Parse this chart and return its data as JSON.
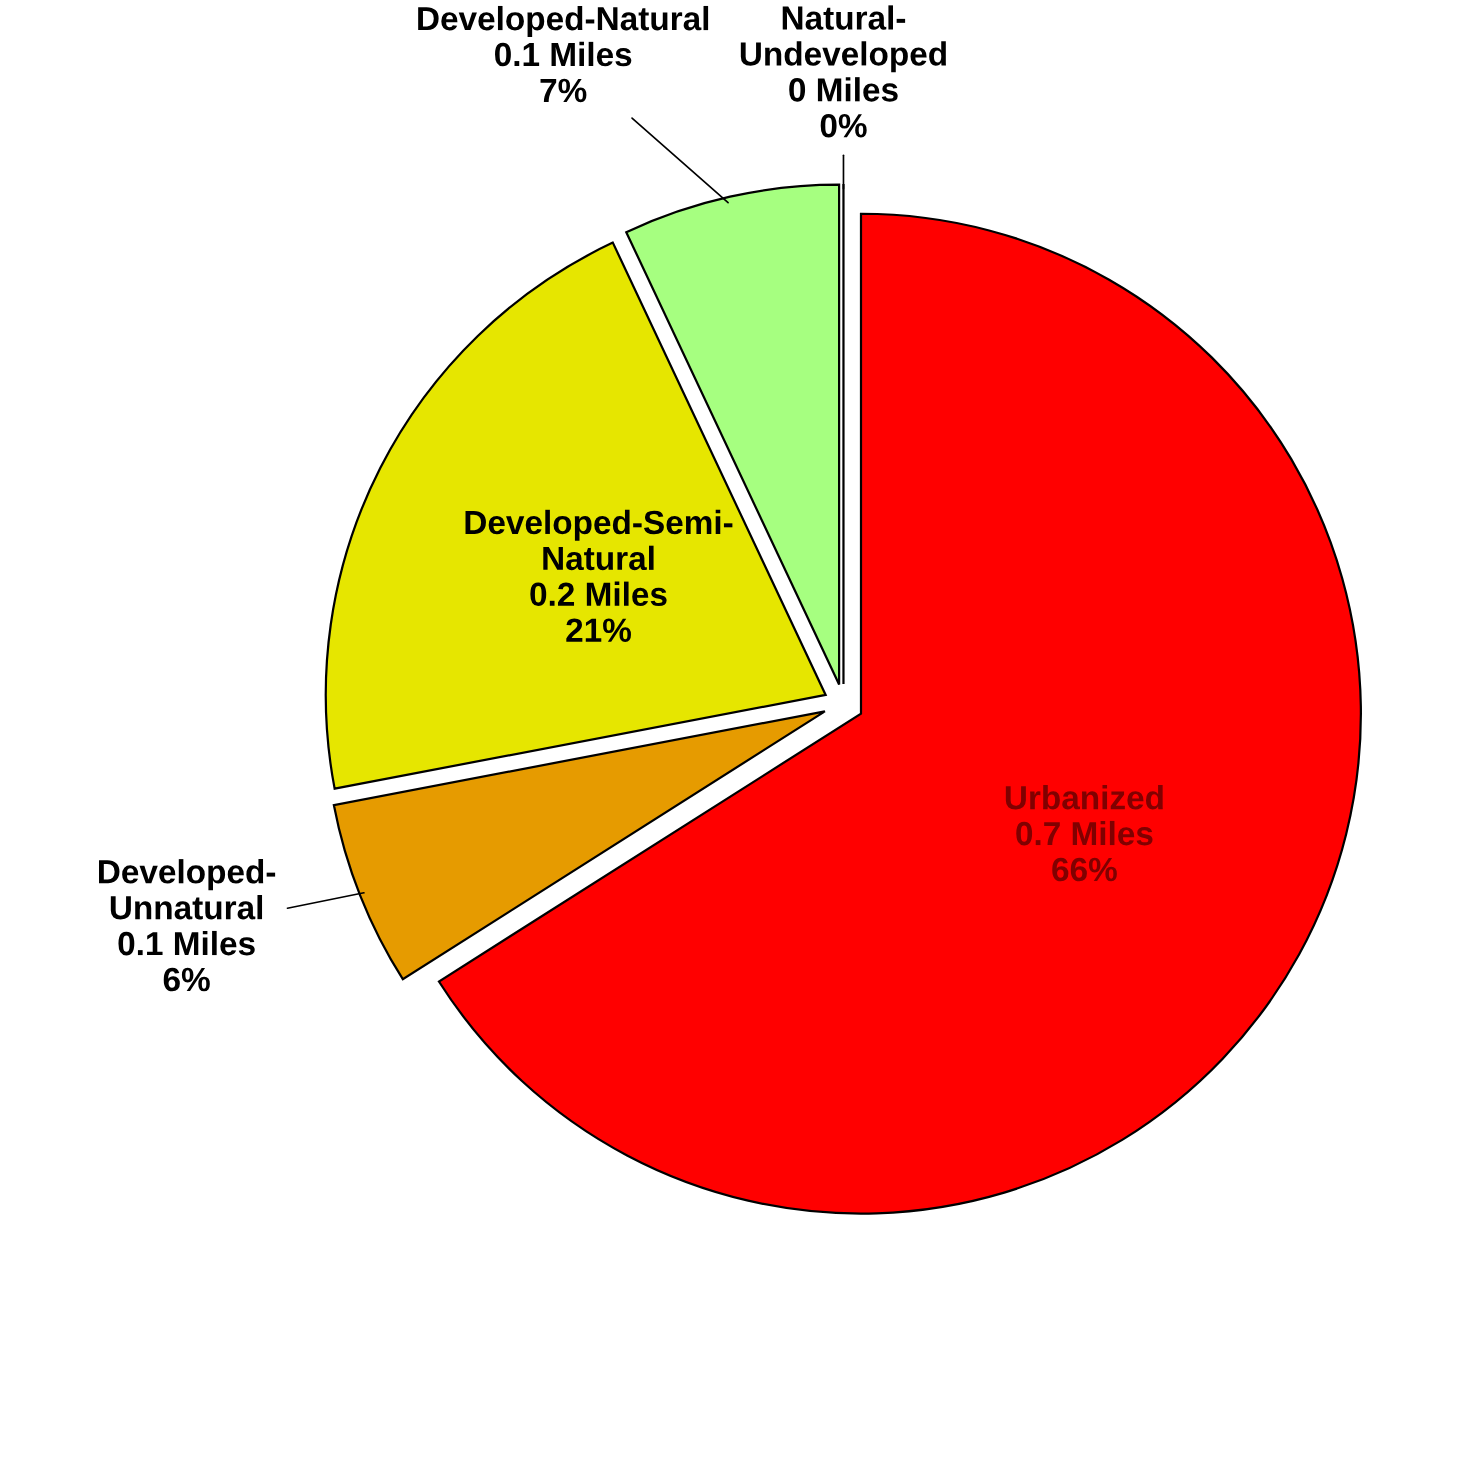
{
  "chart_data": {
    "type": "pie",
    "categories": [
      "Urbanized",
      "Developed-Unnatural",
      "Developed-Semi-Natural",
      "Developed-Natural",
      "Natural-Undeveloped"
    ],
    "values": [
      66,
      6,
      21,
      7,
      0
    ],
    "value_labels": [
      "0.7 Miles\n66%",
      "0.1 Miles\n6%",
      "0.2 Miles\n21%",
      "0.1 Miles\n7%",
      "0 Miles\n0%"
    ],
    "colors": [
      "#ff0000",
      "#e69b00",
      "#e6e600",
      "#a6ff80",
      "#006400"
    ],
    "legend": false
  }
}
